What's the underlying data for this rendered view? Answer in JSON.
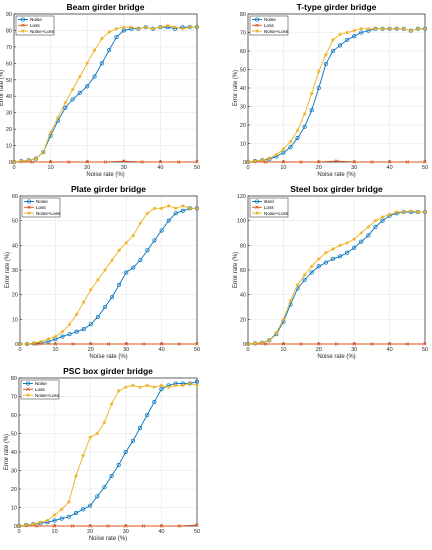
{
  "colors": {
    "noise": "#0072BD",
    "loss": "#D95319",
    "noise_loss": "#EDB120",
    "axis": "#262626",
    "grid": "#e6e6e6"
  },
  "chart_data": [
    {
      "type": "line",
      "title": "Beam girder bridge",
      "xlabel": "Noise rate (%)",
      "ylabel": "Error rate (%)",
      "xlim": [
        0,
        50
      ],
      "ylim": [
        0,
        90
      ],
      "xticks": [
        0,
        10,
        20,
        30,
        40,
        50
      ],
      "yticks": [
        0,
        10,
        20,
        30,
        40,
        50,
        60,
        70,
        80,
        90
      ],
      "grid": true,
      "legend": "top-left",
      "series": [
        {
          "name": "Noise",
          "marker": "circle",
          "x": [
            0,
            2,
            4,
            6,
            8,
            10,
            12,
            14,
            16,
            18,
            20,
            22,
            24,
            26,
            28,
            30,
            32,
            34,
            36,
            38,
            40,
            42,
            44,
            46,
            48,
            50
          ],
          "y": [
            0,
            0.5,
            1,
            2,
            6,
            16,
            25,
            33,
            38,
            42,
            46,
            52,
            60,
            68,
            76,
            80,
            81,
            81,
            82,
            81,
            82,
            82,
            81,
            82,
            82,
            82
          ]
        },
        {
          "name": "Loss",
          "marker": "x",
          "x": [
            0,
            5,
            10,
            15,
            20,
            25,
            30,
            35,
            40,
            45,
            50
          ],
          "y": [
            0,
            0,
            0,
            0,
            0,
            0,
            0.5,
            0,
            0,
            0,
            0
          ]
        },
        {
          "name": "Noise+Loss",
          "marker": "star",
          "x": [
            0,
            2,
            4,
            6,
            8,
            10,
            12,
            14,
            16,
            18,
            20,
            22,
            24,
            26,
            28,
            30,
            32,
            34,
            36,
            38,
            40,
            42,
            44,
            46,
            48,
            50
          ],
          "y": [
            0,
            0.5,
            1,
            2,
            6,
            18,
            27,
            36,
            44,
            52,
            60,
            68,
            75,
            79,
            81,
            82,
            82,
            81,
            82,
            81,
            82,
            83,
            82,
            81,
            82,
            82
          ]
        }
      ]
    },
    {
      "type": "line",
      "title": "T-type girder bridge",
      "xlabel": "Noise rate (%)",
      "ylabel": "Error rate (%)",
      "xlim": [
        0,
        50
      ],
      "ylim": [
        0,
        80
      ],
      "xticks": [
        0,
        10,
        20,
        30,
        40,
        50
      ],
      "yticks": [
        0,
        10,
        20,
        30,
        40,
        50,
        60,
        70,
        80
      ],
      "grid": true,
      "legend": "top-left",
      "series": [
        {
          "name": "Noise",
          "marker": "circle",
          "x": [
            0,
            2,
            4,
            6,
            8,
            10,
            12,
            14,
            16,
            18,
            20,
            22,
            24,
            26,
            28,
            30,
            32,
            34,
            36,
            38,
            40,
            42,
            44,
            46,
            48,
            50
          ],
          "y": [
            0,
            0.5,
            1,
            1.5,
            3,
            5,
            8,
            13,
            19,
            28,
            40,
            53,
            60,
            63,
            66,
            68,
            70,
            71,
            72,
            72,
            72,
            72,
            72,
            71,
            72,
            72
          ]
        },
        {
          "name": "Loss",
          "marker": "x",
          "x": [
            0,
            5,
            10,
            15,
            20,
            25,
            30,
            35,
            40,
            45,
            50
          ],
          "y": [
            0,
            0,
            0,
            0,
            0,
            0.5,
            0,
            0,
            0,
            0,
            0
          ]
        },
        {
          "name": "Noise+Loss",
          "marker": "star",
          "x": [
            0,
            2,
            4,
            6,
            8,
            10,
            12,
            14,
            16,
            18,
            20,
            22,
            24,
            26,
            28,
            30,
            32,
            34,
            36,
            38,
            40,
            42,
            44,
            46,
            48,
            50
          ],
          "y": [
            0,
            0.5,
            1,
            2,
            4,
            7,
            11,
            17,
            26,
            37,
            49,
            58,
            66,
            69,
            70,
            71,
            72,
            72,
            72,
            72,
            72,
            72,
            72,
            71,
            72,
            72
          ]
        }
      ]
    },
    {
      "type": "line",
      "title": "Plate girder bridge",
      "xlabel": "Noise rate (%)",
      "ylabel": "Error rate (%)",
      "xlim": [
        0,
        50
      ],
      "ylim": [
        0,
        60
      ],
      "xticks": [
        0,
        10,
        20,
        30,
        40,
        50
      ],
      "yticks": [
        0,
        10,
        20,
        30,
        40,
        50,
        60
      ],
      "grid": true,
      "legend": "top-left",
      "series": [
        {
          "name": "Noise",
          "marker": "circle",
          "x": [
            0,
            2,
            4,
            6,
            8,
            10,
            12,
            14,
            16,
            18,
            20,
            22,
            24,
            26,
            28,
            30,
            32,
            34,
            36,
            38,
            40,
            42,
            44,
            46,
            48,
            50
          ],
          "y": [
            0,
            0,
            0.2,
            0.5,
            1,
            2,
            3,
            4,
            5,
            6,
            8,
            11,
            15,
            19,
            24,
            29,
            31,
            34,
            38,
            42,
            46,
            50,
            53,
            54,
            55,
            55
          ]
        },
        {
          "name": "Loss",
          "marker": "x",
          "x": [
            0,
            5,
            10,
            15,
            20,
            25,
            30,
            35,
            40,
            45,
            50
          ],
          "y": [
            0,
            0,
            0,
            0,
            0,
            0,
            0,
            0,
            0,
            0,
            0
          ]
        },
        {
          "name": "Noise+Loss",
          "marker": "star",
          "x": [
            0,
            2,
            4,
            6,
            8,
            10,
            12,
            14,
            16,
            18,
            20,
            22,
            24,
            26,
            28,
            30,
            32,
            34,
            36,
            38,
            40,
            42,
            44,
            46,
            48,
            50
          ],
          "y": [
            0,
            0,
            0.5,
            1,
            2,
            3,
            5,
            8,
            12,
            17,
            22,
            26,
            30,
            34,
            38,
            41,
            44,
            49,
            53,
            55,
            55,
            56,
            55,
            56,
            55,
            55
          ]
        }
      ]
    },
    {
      "type": "line",
      "title": "Steel box girder bridge",
      "xlabel": "Noise rate (%)",
      "ylabel": "Error rate (%)",
      "xlim": [
        0,
        50
      ],
      "ylim": [
        0,
        120
      ],
      "xticks": [
        0,
        10,
        20,
        30,
        40,
        50
      ],
      "yticks": [
        0,
        20,
        40,
        60,
        80,
        100,
        120
      ],
      "grid": true,
      "legend": "top-left",
      "series": [
        {
          "name": "steel",
          "marker": "circle",
          "x": [
            0,
            2,
            4,
            6,
            8,
            10,
            12,
            14,
            16,
            18,
            20,
            22,
            24,
            26,
            28,
            30,
            32,
            34,
            36,
            38,
            40,
            42,
            44,
            46,
            48,
            50
          ],
          "y": [
            0,
            0.5,
            1,
            3,
            8,
            18,
            32,
            45,
            52,
            58,
            63,
            66,
            69,
            71,
            74,
            78,
            83,
            88,
            95,
            100,
            104,
            106,
            107,
            107,
            107,
            107
          ]
        },
        {
          "name": "Loss",
          "marker": "x",
          "x": [
            0,
            5,
            10,
            15,
            20,
            25,
            30,
            35,
            40,
            45,
            50
          ],
          "y": [
            0,
            0,
            0,
            0,
            0,
            0,
            0,
            0,
            0,
            0,
            0
          ]
        },
        {
          "name": "Noise+Loss",
          "marker": "star",
          "x": [
            0,
            2,
            4,
            6,
            8,
            10,
            12,
            14,
            16,
            18,
            20,
            22,
            24,
            26,
            28,
            30,
            32,
            34,
            36,
            38,
            40,
            42,
            44,
            46,
            48,
            50
          ],
          "y": [
            0,
            0.5,
            1,
            3,
            9,
            20,
            35,
            48,
            56,
            63,
            69,
            74,
            77,
            80,
            82,
            85,
            90,
            95,
            100,
            103,
            105,
            107,
            107,
            108,
            107,
            107
          ]
        }
      ]
    },
    {
      "type": "line",
      "title": "PSC box girder bridge",
      "xlabel": "Noise rate (%)",
      "ylabel": "Error rate (%)",
      "xlim": [
        0,
        50
      ],
      "ylim": [
        0,
        80
      ],
      "xticks": [
        0,
        10,
        20,
        30,
        40,
        50
      ],
      "yticks": [
        0,
        10,
        20,
        30,
        40,
        50,
        60,
        70,
        80
      ],
      "grid": true,
      "legend": "top-left",
      "series": [
        {
          "name": "Noise",
          "marker": "circle",
          "x": [
            0,
            2,
            4,
            6,
            8,
            10,
            12,
            14,
            16,
            18,
            20,
            22,
            24,
            26,
            28,
            30,
            32,
            34,
            36,
            38,
            40,
            42,
            44,
            46,
            48,
            50
          ],
          "y": [
            0,
            0.5,
            1,
            1.5,
            2,
            3,
            4,
            5,
            7,
            9,
            11,
            16,
            21,
            27,
            33,
            40,
            46,
            53,
            60,
            67,
            74,
            76,
            77,
            77,
            77,
            78
          ]
        },
        {
          "name": "Loss",
          "marker": "x",
          "x": [
            0,
            5,
            10,
            15,
            20,
            25,
            30,
            35,
            40,
            45,
            50
          ],
          "y": [
            0,
            0,
            0,
            0,
            0,
            0,
            0,
            0,
            0,
            0,
            0.5
          ]
        },
        {
          "name": "Noise+Loss",
          "marker": "star",
          "x": [
            0,
            2,
            4,
            6,
            8,
            10,
            12,
            14,
            16,
            18,
            20,
            22,
            24,
            26,
            28,
            30,
            32,
            34,
            36,
            38,
            40,
            42,
            44,
            46,
            48,
            50
          ],
          "y": [
            0,
            0.5,
            1,
            2,
            3,
            6,
            9,
            13,
            27,
            38,
            48,
            50,
            56,
            66,
            73,
            75,
            76,
            75,
            76,
            75,
            76,
            75,
            76,
            76,
            77,
            76
          ]
        }
      ]
    }
  ]
}
